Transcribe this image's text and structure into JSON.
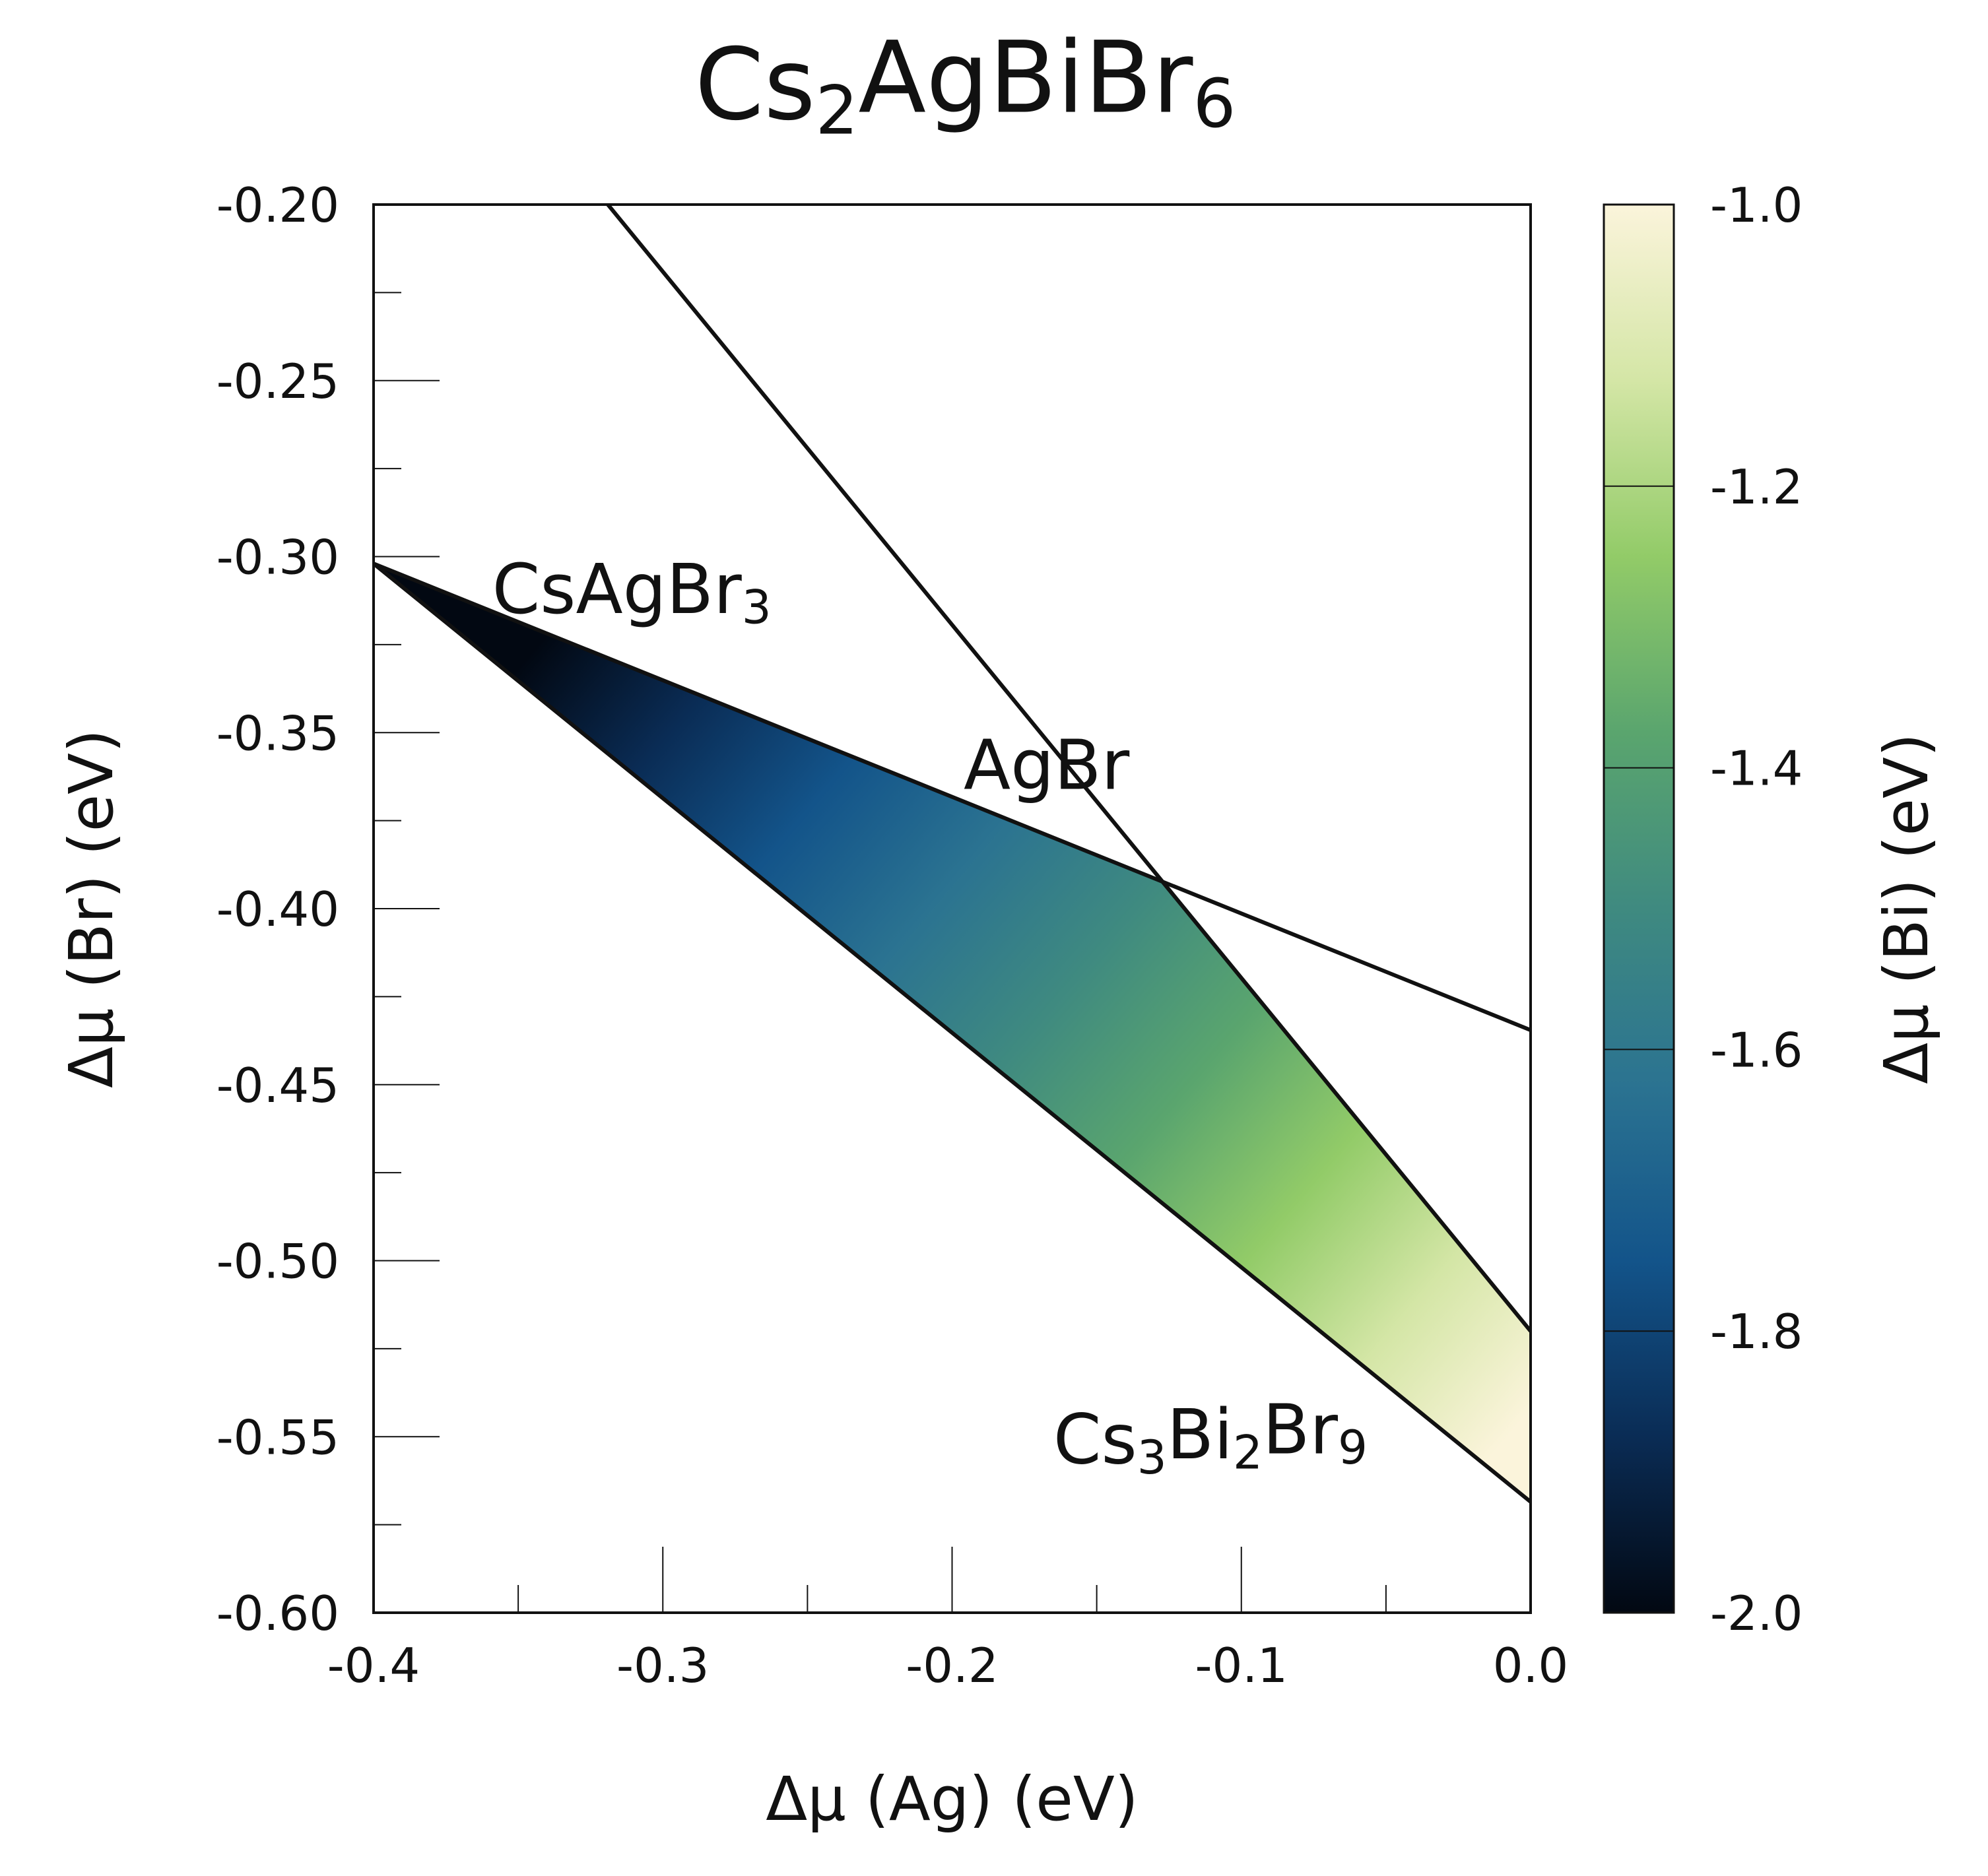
{
  "chart_data": {
    "type": "area",
    "title": {
      "base": "Cs",
      "parts": [
        {
          "t": "Cs",
          "s": ""
        },
        {
          "t": "2",
          "s": "sub"
        },
        {
          "t": "AgBiBr",
          "s": ""
        },
        {
          "t": "6",
          "s": "sub"
        }
      ]
    },
    "xlabel": "Δμ (Ag) (eV)",
    "ylabel": "Δμ (Br) (eV)",
    "colorbar_label": "Δμ (Bi) (eV)",
    "xlim": [
      -0.4,
      0.0
    ],
    "ylim": [
      -0.6,
      -0.2
    ],
    "clim": [
      -2.0,
      -1.0
    ],
    "x_ticks": [
      {
        "value": -0.4,
        "label": "-0.4"
      },
      {
        "value": -0.3,
        "label": "-0.3"
      },
      {
        "value": -0.2,
        "label": "-0.2"
      },
      {
        "value": -0.1,
        "label": "-0.1"
      },
      {
        "value": 0.0,
        "label": "0.0"
      }
    ],
    "y_ticks": [
      {
        "value": -0.2,
        "label": "-0.20"
      },
      {
        "value": -0.25,
        "label": "-0.25"
      },
      {
        "value": -0.3,
        "label": "-0.30"
      },
      {
        "value": -0.35,
        "label": "-0.35"
      },
      {
        "value": -0.4,
        "label": "-0.40"
      },
      {
        "value": -0.45,
        "label": "-0.45"
      },
      {
        "value": -0.5,
        "label": "-0.50"
      },
      {
        "value": -0.55,
        "label": "-0.55"
      },
      {
        "value": -0.6,
        "label": "-0.60"
      }
    ],
    "colorbar_ticks": [
      {
        "value": -1.0,
        "label": "-1.0"
      },
      {
        "value": -1.2,
        "label": "-1.2"
      },
      {
        "value": -1.4,
        "label": "-1.4"
      },
      {
        "value": -1.6,
        "label": "-1.6"
      },
      {
        "value": -1.8,
        "label": "-1.8"
      },
      {
        "value": -2.0,
        "label": "-2.0"
      }
    ],
    "colormap": [
      "#020812",
      "#0a2c55",
      "#13548a",
      "#2b7391",
      "#3f8a80",
      "#5aa56e",
      "#92cb68",
      "#d4e6a6",
      "#fbf4db"
    ],
    "stable_region": [
      {
        "x": -0.4,
        "y": -0.302
      },
      {
        "x": -0.128,
        "y": -0.3915
      },
      {
        "x": 0.0,
        "y": -0.52
      },
      {
        "x": 0.0,
        "y": -0.5685
      }
    ],
    "boundary_lines": [
      {
        "name": "CsAgBr3",
        "points": [
          {
            "x": -0.4,
            "y": -0.302
          },
          {
            "x": 0.0,
            "y": -0.4345
          }
        ]
      },
      {
        "name": "AgBr",
        "points": [
          {
            "x": -0.319,
            "y": -0.2
          },
          {
            "x": 0.0,
            "y": -0.52
          }
        ]
      },
      {
        "name": "Cs3Bi2Br9",
        "points": [
          {
            "x": -0.4,
            "y": -0.302
          },
          {
            "x": 0.0,
            "y": -0.5685
          }
        ]
      }
    ],
    "annotations": [
      {
        "name": "CsAgBr3",
        "x": -0.359,
        "y": -0.316,
        "parts": [
          {
            "t": "CsAgBr",
            "s": ""
          },
          {
            "t": "3",
            "s": "sub"
          }
        ]
      },
      {
        "name": "AgBr",
        "x": -0.196,
        "y": -0.366,
        "parts": [
          {
            "t": "AgBr",
            "s": ""
          }
        ]
      },
      {
        "name": "Cs3Bi2Br9",
        "x": -0.165,
        "y": -0.5575,
        "parts": [
          {
            "t": "Cs",
            "s": ""
          },
          {
            "t": "3",
            "s": "sub"
          },
          {
            "t": "Bi",
            "s": ""
          },
          {
            "t": "2",
            "s": "sub"
          },
          {
            "t": "Br",
            "s": ""
          },
          {
            "t": "9",
            "s": "sub"
          }
        ]
      }
    ],
    "grid": false,
    "legend": "none"
  }
}
